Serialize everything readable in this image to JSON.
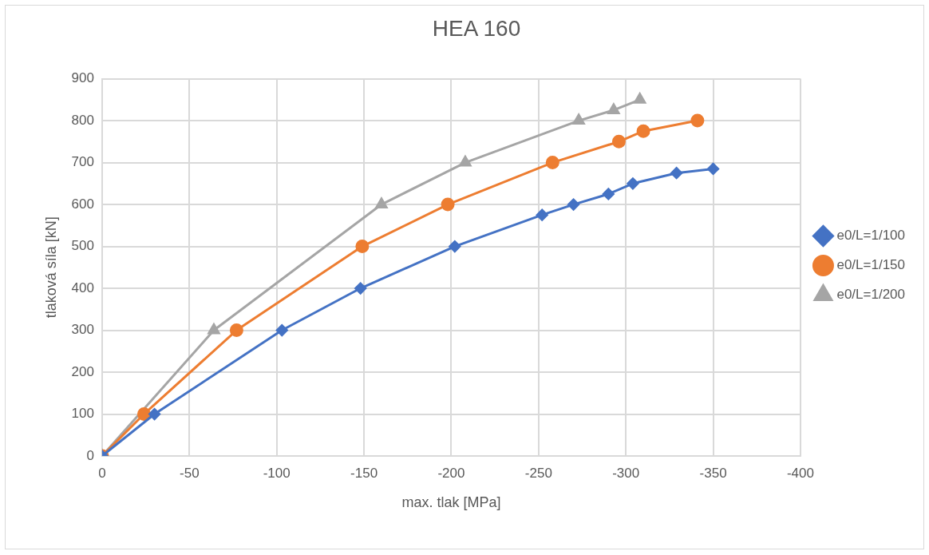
{
  "chart_data": {
    "type": "line",
    "title": "HEA 160",
    "xlabel": "max. tlak [MPa]",
    "ylabel": "tlaková síla [kN]",
    "xlim": [
      0,
      -400
    ],
    "xticks": [
      0,
      -50,
      -100,
      -150,
      -200,
      -250,
      -300,
      -350,
      -400
    ],
    "ylim": [
      0,
      900
    ],
    "yticks": [
      0,
      100,
      200,
      300,
      400,
      500,
      600,
      700,
      800,
      900
    ],
    "grid": true,
    "legend": "right",
    "line_style": "solid",
    "series": [
      {
        "name": "e0/L=1/100",
        "color": "#4472c4",
        "marker": "diamond",
        "x": [
          0,
          -30,
          -103,
          -148,
          -202,
          -252,
          -270,
          -290,
          -304,
          -329,
          -350
        ],
        "values": [
          0,
          100,
          300,
          400,
          500,
          575,
          600,
          625,
          650,
          675,
          685
        ]
      },
      {
        "name": "e0/L=1/150",
        "color": "#ed7d31",
        "marker": "circle",
        "x": [
          0,
          -24,
          -77,
          -149,
          -198,
          -258,
          -296,
          -310,
          -341
        ],
        "values": [
          0,
          100,
          300,
          500,
          600,
          700,
          750,
          775,
          800
        ]
      },
      {
        "name": "e0/L=1/200",
        "color": "#a5a5a5",
        "marker": "triangle",
        "x": [
          0,
          -21,
          -64,
          -160,
          -208,
          -273,
          -293,
          -308
        ],
        "values": [
          0,
          null,
          300,
          600,
          700,
          800,
          825,
          850
        ]
      }
    ]
  }
}
